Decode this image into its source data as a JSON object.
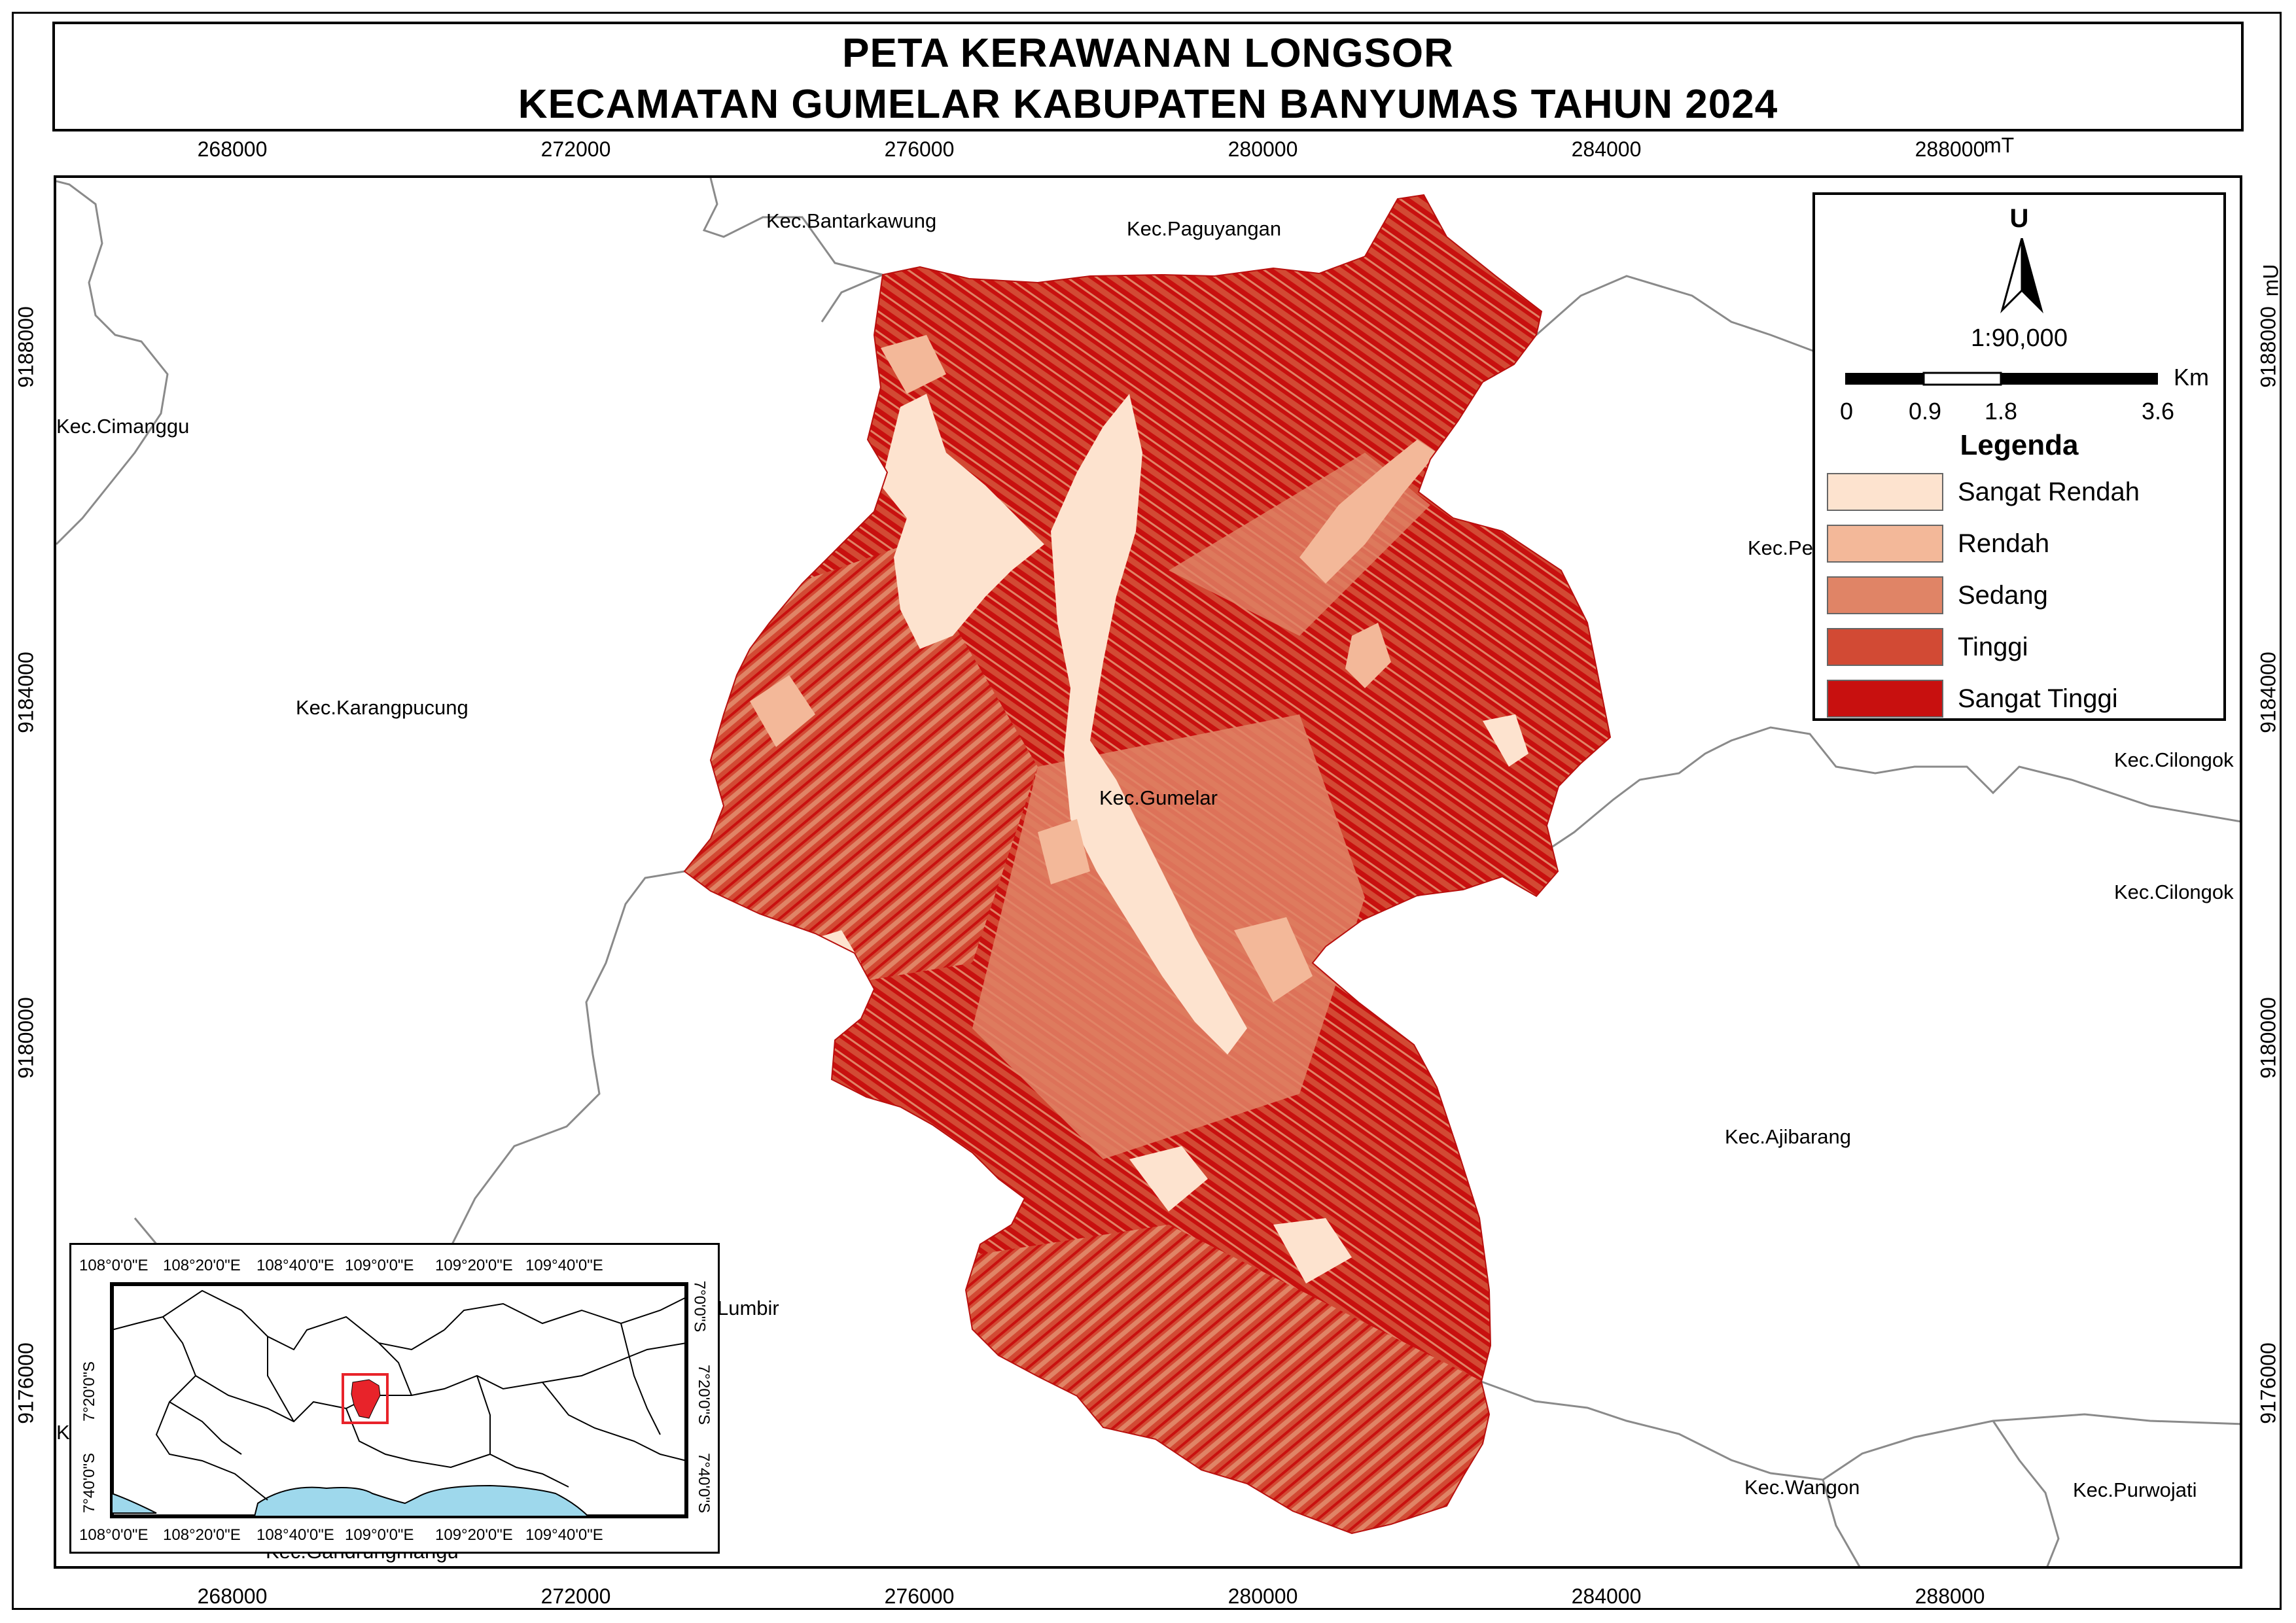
{
  "title": {
    "line1": "PETA KERAWANAN LONGSOR",
    "line2": "KECAMATAN GUMELAR KABUPATEN BANYUMAS TAHUN 2024"
  },
  "grid": {
    "x_ticks": [
      "268000",
      "272000",
      "276000",
      "280000",
      "284000",
      "288000"
    ],
    "x_unit": "mT",
    "y_ticks": [
      "9188000",
      "9184000",
      "9180000",
      "9176000"
    ],
    "y_unit": "mU"
  },
  "regions": [
    "Kec.Bantarkawung",
    "Kec.Paguyangan",
    "Kec.Cimanggu",
    "Kec.Karangpucung",
    "Kec.Gumelar",
    "Kec.Pe",
    "Kec.Cilongok",
    "Kec.Cilongok",
    "Kec.Ajibarang",
    "Lumbir",
    "Kec.Wangon",
    "Kec.Purwojati",
    "Kec.Gandrungmangu",
    "K"
  ],
  "legend": {
    "north_label": "U",
    "scale_ratio": "1:90,000",
    "scale_unit": "Km",
    "scale_values": [
      "0",
      "0.9",
      "1.8",
      "3.6"
    ],
    "heading": "Legenda",
    "classes": [
      {
        "label": "Sangat Rendah",
        "color": "#fde3cf"
      },
      {
        "label": "Rendah",
        "color": "#f3b899"
      },
      {
        "label": "Sedang",
        "color": "#e08466"
      },
      {
        "label": "Tinggi",
        "color": "#d24a34"
      },
      {
        "label": "Sangat Tinggi",
        "color": "#c8100f"
      }
    ]
  },
  "inset": {
    "lon_ticks": [
      "108°0'0\"E",
      "108°20'0\"E",
      "108°40'0\"E",
      "109°0'0\"E",
      "109°20'0\"E",
      "109°40'0\"E"
    ],
    "lat_ticks": [
      "7°0'0\"S",
      "7°20'0\"S",
      "7°40'0\"S"
    ],
    "sea_color": "#9ed8ec",
    "highlight_color": "#e8232a"
  }
}
